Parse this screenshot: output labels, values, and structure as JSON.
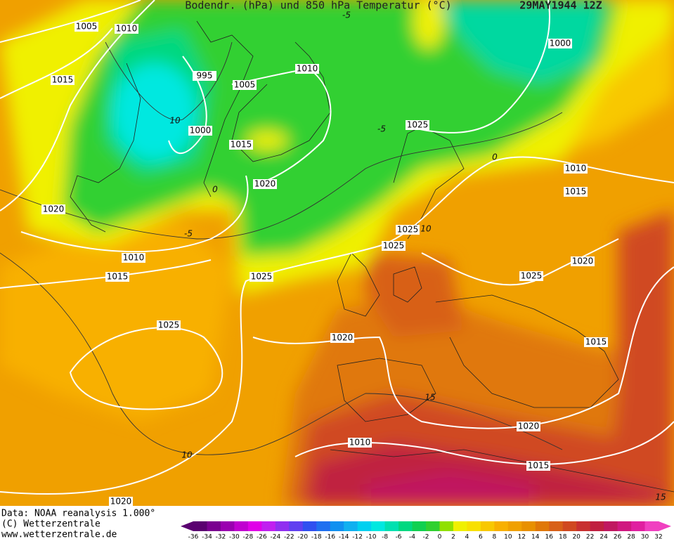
{
  "header": {
    "title": "Bodendr. (hPa) und 850 hPa Temperatur (°C)",
    "date": "29MAY1944 12Z"
  },
  "isobar_labels": [
    1005,
    1010,
    1015,
    995,
    1005,
    1010,
    1000,
    1015,
    1020,
    1020,
    1010,
    1015,
    1025,
    1025,
    1020,
    1000,
    1025,
    1010,
    1015,
    1025,
    1025,
    1020,
    1025,
    1015,
    1020,
    1010,
    1015,
    1020
  ],
  "temperature_labels": [
    -5,
    10,
    -5,
    0,
    0,
    -5,
    10,
    15,
    10,
    15
  ],
  "footer": {
    "lines": [
      "Data: NOAA reanalysis 1.000°",
      "(C) Wetterzentrale",
      "www.wetterzentrale.de"
    ]
  },
  "colorbar": {
    "ticks": [
      -36,
      -34,
      -32,
      -30,
      -28,
      -26,
      -24,
      -22,
      -20,
      -18,
      -16,
      -14,
      -12,
      -10,
      -8,
      -6,
      -4,
      -2,
      0,
      2,
      4,
      6,
      8,
      10,
      12,
      14,
      16,
      18,
      20,
      22,
      24,
      26,
      28,
      30,
      32
    ],
    "colors": [
      "#5a0070",
      "#7a0090",
      "#9a00b0",
      "#c000d0",
      "#e000e8",
      "#c020f0",
      "#9030f0",
      "#6040f0",
      "#3050f0",
      "#2070f0",
      "#1090f0",
      "#10b0f0",
      "#00d0f0",
      "#00e8e0",
      "#00e0b0",
      "#00d880",
      "#10d050",
      "#30d030",
      "#90e000",
      "#f0f000",
      "#f8e000",
      "#f8c800",
      "#f8b000",
      "#f0a000",
      "#e89000",
      "#e07808",
      "#d86018",
      "#d04820",
      "#c83030",
      "#c02040",
      "#c01860",
      "#d01880",
      "#e020a0",
      "#f040c0"
    ]
  }
}
